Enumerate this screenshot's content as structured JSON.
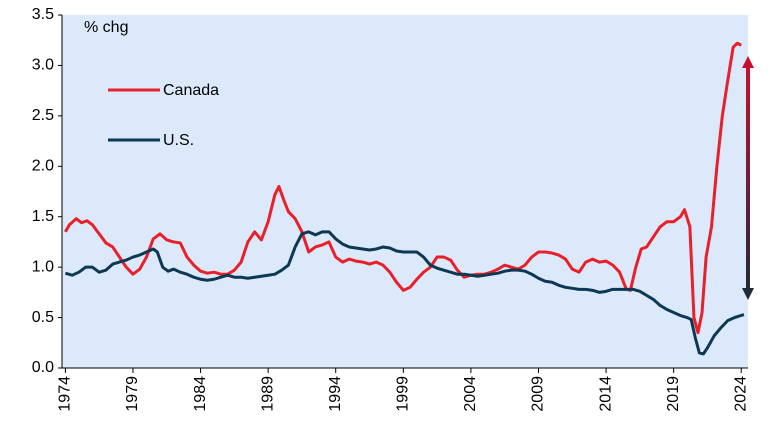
{
  "chart_data": {
    "type": "line",
    "y_label": "% chg",
    "xlim": [
      1973.75,
      2024.5
    ],
    "xticks": [
      1974,
      1979,
      1984,
      1989,
      1994,
      1999,
      2004,
      2009,
      2014,
      2019,
      2024
    ],
    "ylim": [
      0,
      3.5
    ],
    "yticks": [
      {
        "value": 0,
        "label": "0.0"
      },
      0.5,
      {
        "value": 1,
        "label": "1.0"
      },
      1.5,
      {
        "value": 2,
        "label": "2.0"
      },
      2.5,
      {
        "value": 3,
        "label": "3.0"
      },
      3.5
    ],
    "series": [
      {
        "name": "Canada",
        "color": "#e8202a",
        "x": [
          1974,
          1974.3,
          1974.8,
          1975.2,
          1975.6,
          1976,
          1976.5,
          1977,
          1977.5,
          1978,
          1978.5,
          1979,
          1979.5,
          1980,
          1980.5,
          1981,
          1981.5,
          1982,
          1982.5,
          1983,
          1983.5,
          1984,
          1984.5,
          1985,
          1985.5,
          1986,
          1986.5,
          1987,
          1987.5,
          1988,
          1988.5,
          1989,
          1989.5,
          1989.8,
          1990.2,
          1990.5,
          1991,
          1991.5,
          1992,
          1992.5,
          1993,
          1993.5,
          1994,
          1994.5,
          1995,
          1995.5,
          1996,
          1996.5,
          1997,
          1997.5,
          1998,
          1998.5,
          1999,
          1999.5,
          2000,
          2000.5,
          2001,
          2001.5,
          2002,
          2002.5,
          2003,
          2003.5,
          2004,
          2004.5,
          2005,
          2005.5,
          2006,
          2006.5,
          2007,
          2007.5,
          2008,
          2008.5,
          2009,
          2009.5,
          2010,
          2010.5,
          2011,
          2011.5,
          2012,
          2012.5,
          2013,
          2013.5,
          2014,
          2014.5,
          2015,
          2015.5,
          2015.8,
          2016.2,
          2016.6,
          2017,
          2017.5,
          2018,
          2018.5,
          2019,
          2019.5,
          2019.8,
          2020.2,
          2020.5,
          2020.8,
          2021.1,
          2021.4,
          2021.8,
          2022.2,
          2022.6,
          2023,
          2023.4,
          2023.7,
          2024
        ],
        "values": [
          1.35,
          1.42,
          1.48,
          1.44,
          1.46,
          1.42,
          1.33,
          1.24,
          1.2,
          1.1,
          1.0,
          0.93,
          0.98,
          1.1,
          1.28,
          1.33,
          1.27,
          1.25,
          1.24,
          1.1,
          1.02,
          0.96,
          0.94,
          0.95,
          0.93,
          0.93,
          0.97,
          1.05,
          1.25,
          1.35,
          1.27,
          1.45,
          1.72,
          1.8,
          1.65,
          1.55,
          1.48,
          1.35,
          1.15,
          1.2,
          1.22,
          1.25,
          1.1,
          1.05,
          1.08,
          1.06,
          1.05,
          1.03,
          1.05,
          1.02,
          0.95,
          0.85,
          0.77,
          0.8,
          0.88,
          0.95,
          1.0,
          1.1,
          1.1,
          1.07,
          0.97,
          0.9,
          0.92,
          0.93,
          0.93,
          0.95,
          0.98,
          1.02,
          1.0,
          0.98,
          1.02,
          1.1,
          1.15,
          1.15,
          1.14,
          1.12,
          1.08,
          0.98,
          0.95,
          1.05,
          1.08,
          1.05,
          1.06,
          1.02,
          0.95,
          0.78,
          0.77,
          1.0,
          1.18,
          1.2,
          1.3,
          1.4,
          1.45,
          1.45,
          1.5,
          1.57,
          1.4,
          0.5,
          0.35,
          0.55,
          1.1,
          1.4,
          2.0,
          2.5,
          2.85,
          3.18,
          3.22,
          3.2
        ]
      },
      {
        "name": "U.S.",
        "color": "#0d3853",
        "x": [
          1974,
          1974.5,
          1975,
          1975.5,
          1976,
          1976.5,
          1977,
          1977.5,
          1978,
          1978.5,
          1979,
          1979.5,
          1980,
          1980.5,
          1980.8,
          1981.2,
          1981.6,
          1982,
          1982.5,
          1983,
          1983.5,
          1984,
          1984.5,
          1985,
          1985.5,
          1986,
          1986.5,
          1987,
          1987.5,
          1988,
          1988.5,
          1989,
          1989.5,
          1990,
          1990.5,
          1991,
          1991.5,
          1992,
          1992.5,
          1993,
          1993.5,
          1994,
          1994.5,
          1995,
          1995.5,
          1996,
          1996.5,
          1997,
          1997.5,
          1998,
          1998.5,
          1999,
          1999.5,
          2000,
          2000.5,
          2001,
          2001.5,
          2002,
          2002.5,
          2003,
          2003.5,
          2004,
          2004.5,
          2005,
          2005.5,
          2006,
          2006.5,
          2007,
          2007.5,
          2008,
          2008.5,
          2009,
          2009.5,
          2010,
          2010.5,
          2011,
          2011.5,
          2012,
          2012.5,
          2013,
          2013.5,
          2014,
          2014.5,
          2015,
          2015.5,
          2016,
          2016.5,
          2017,
          2017.5,
          2018,
          2018.5,
          2019,
          2019.5,
          2020,
          2020.3,
          2020.6,
          2020.9,
          2021.2,
          2021.5,
          2022,
          2022.5,
          2023,
          2023.5,
          2024.2
        ],
        "values": [
          0.94,
          0.92,
          0.95,
          1.0,
          1.0,
          0.95,
          0.97,
          1.03,
          1.05,
          1.07,
          1.1,
          1.12,
          1.15,
          1.18,
          1.15,
          1.0,
          0.96,
          0.98,
          0.95,
          0.93,
          0.9,
          0.88,
          0.87,
          0.88,
          0.9,
          0.92,
          0.9,
          0.9,
          0.89,
          0.9,
          0.91,
          0.92,
          0.93,
          0.97,
          1.02,
          1.2,
          1.33,
          1.35,
          1.32,
          1.35,
          1.35,
          1.28,
          1.23,
          1.2,
          1.19,
          1.18,
          1.17,
          1.18,
          1.2,
          1.19,
          1.16,
          1.15,
          1.15,
          1.15,
          1.1,
          1.02,
          0.99,
          0.97,
          0.95,
          0.93,
          0.93,
          0.92,
          0.91,
          0.92,
          0.93,
          0.94,
          0.96,
          0.97,
          0.97,
          0.96,
          0.93,
          0.89,
          0.86,
          0.85,
          0.82,
          0.8,
          0.79,
          0.78,
          0.78,
          0.77,
          0.75,
          0.76,
          0.78,
          0.78,
          0.78,
          0.78,
          0.76,
          0.72,
          0.68,
          0.62,
          0.58,
          0.55,
          0.52,
          0.5,
          0.48,
          0.3,
          0.15,
          0.14,
          0.2,
          0.32,
          0.4,
          0.47,
          0.5,
          0.53
        ]
      }
    ]
  }
}
